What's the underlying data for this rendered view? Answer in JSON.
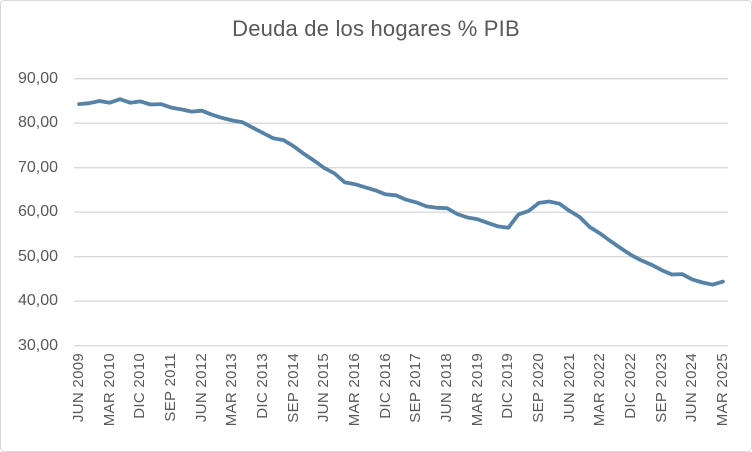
{
  "chart_data": {
    "type": "line",
    "title": "Deuda de los hogares % PIB",
    "xlabel": "",
    "ylabel": "",
    "ylim": [
      30,
      90
    ],
    "grid": "horizontal",
    "legend": "none",
    "decimal_format": "comma",
    "y_ticks": [
      30,
      40,
      50,
      60,
      70,
      80,
      90
    ],
    "y_tick_labels": [
      "30,00",
      "40,00",
      "50,00",
      "60,00",
      "70,00",
      "80,00",
      "90,00"
    ],
    "x_tick_every": 3,
    "x_tick_labels_visible": [
      "JUN 2009",
      "MAR 2010",
      "DIC 2010",
      "SEP 2011",
      "JUN 2012",
      "MAR 2013",
      "DIC 2013",
      "SEP 2014",
      "JUN 2015",
      "MAR 2016",
      "DIC 2016",
      "SEP 2017",
      "JUN 2018",
      "MAR 2019",
      "DIC 2019",
      "SEP 2020",
      "JUN 2021",
      "MAR 2022",
      "DIC 2022",
      "SEP 2023",
      "JUN 2024",
      "MAR 2025"
    ],
    "categories": [
      "JUN 2009",
      "SEP 2009",
      "DIC 2009",
      "MAR 2010",
      "JUN 2010",
      "SEP 2010",
      "DIC 2010",
      "MAR 2011",
      "JUN 2011",
      "SEP 2011",
      "DIC 2011",
      "MAR 2012",
      "JUN 2012",
      "SEP 2012",
      "DIC 2012",
      "MAR 2013",
      "JUN 2013",
      "SEP 2013",
      "DIC 2013",
      "MAR 2014",
      "JUN 2014",
      "SEP 2014",
      "DIC 2014",
      "MAR 2015",
      "JUN 2015",
      "SEP 2015",
      "DIC 2015",
      "MAR 2016",
      "JUN 2016",
      "SEP 2016",
      "DIC 2016",
      "MAR 2017",
      "JUN 2017",
      "SEP 2017",
      "DIC 2017",
      "MAR 2018",
      "JUN 2018",
      "SEP 2018",
      "DIC 2018",
      "MAR 2019",
      "JUN 2019",
      "SEP 2019",
      "DIC 2019",
      "MAR 2020",
      "JUN 2020",
      "SEP 2020",
      "DIC 2020",
      "MAR 2021",
      "JUN 2021",
      "SEP 2021",
      "DIC 2021",
      "MAR 2022",
      "JUN 2022",
      "SEP 2022",
      "DIC 2022",
      "MAR 2023",
      "JUN 2023",
      "SEP 2023",
      "DIC 2023",
      "MAR 2024",
      "JUN 2024",
      "SEP 2024",
      "DIC 2024",
      "MAR 2025"
    ],
    "series": [
      {
        "name": "Deuda de los hogares % PIB",
        "values": [
          84.3,
          84.5,
          85.0,
          84.6,
          85.4,
          84.6,
          84.9,
          84.2,
          84.3,
          83.5,
          83.1,
          82.6,
          82.8,
          81.9,
          81.2,
          80.6,
          80.2,
          79.0,
          77.8,
          76.6,
          76.2,
          74.8,
          73.1,
          71.6,
          69.9,
          68.7,
          66.7,
          66.3,
          65.6,
          64.9,
          64.0,
          63.8,
          62.8,
          62.2,
          61.3,
          61.0,
          60.9,
          59.6,
          58.8,
          58.4,
          57.6,
          56.8,
          56.5,
          59.5,
          60.3,
          62.1,
          62.4,
          61.9,
          60.3,
          58.9,
          56.6,
          55.2,
          53.5,
          51.9,
          50.4,
          49.2,
          48.2,
          47.0,
          46.0,
          46.1,
          44.9,
          44.2,
          43.7,
          44.4
        ]
      }
    ],
    "colors": {
      "line": "#5682a6",
      "gridline": "#d9d9d9",
      "axis_line": "#d9d9d9",
      "axis_text": "#595959",
      "title_text": "#595959",
      "border": "#d9d9d9",
      "background": "#ffffff"
    }
  }
}
